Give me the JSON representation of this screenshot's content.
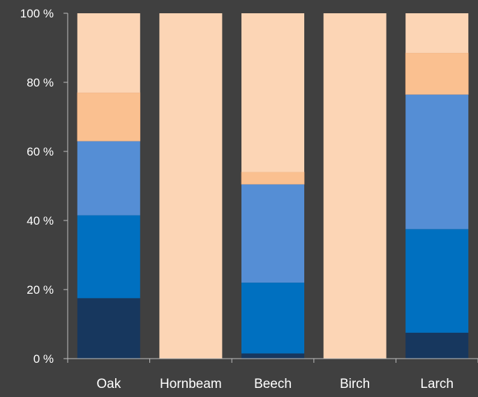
{
  "chart_data": {
    "type": "bar",
    "stacked": true,
    "categories": [
      "Oak",
      "Hornbeam",
      "Beech",
      "Birch",
      "Larch"
    ],
    "series": [
      {
        "color": "#17375e",
        "values": [
          17.5,
          0,
          1.5,
          0,
          7.5
        ]
      },
      {
        "color": "#0070c0",
        "values": [
          24,
          0,
          20.5,
          0,
          30
        ]
      },
      {
        "color": "#558ed5",
        "values": [
          21.5,
          0,
          28.5,
          0,
          39
        ]
      },
      {
        "color": "#fac090",
        "values": [
          14,
          0,
          3.5,
          0,
          12
        ]
      },
      {
        "color": "#fcd5b5",
        "values": [
          23,
          100,
          46,
          100,
          11.5
        ]
      }
    ],
    "y_ticks": [
      "0 %",
      "20 %",
      "40 %",
      "60 %",
      "80 %",
      "100 %"
    ],
    "ylim": [
      0,
      100
    ],
    "grid": false,
    "legend": "none",
    "background": "#404040",
    "axis_color": "#bfbfbf",
    "text_color": "#ffffff"
  }
}
